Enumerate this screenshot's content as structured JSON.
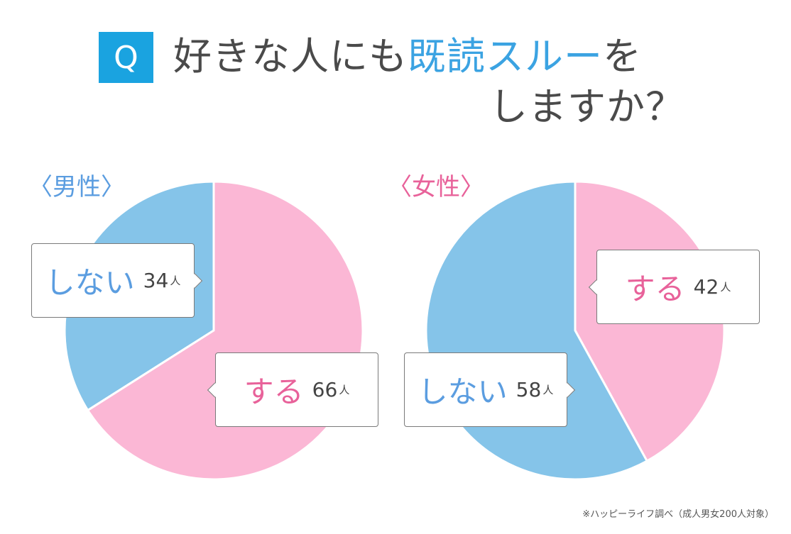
{
  "title": {
    "q_label": "Q",
    "line1_prefix": "好きな人にも",
    "line1_accent": "既読スルー",
    "line1_suffix": "を",
    "line2": "しますか？"
  },
  "colors": {
    "pink": "#fbb7d5",
    "blue": "#85c4e9",
    "accent_blue": "#3ba3e2",
    "pink_text": "#e8629a",
    "blue_text": "#5b9de0"
  },
  "chart_data": [
    {
      "type": "pie",
      "title": "〈男性〉",
      "categories": [
        "しない",
        "する"
      ],
      "values": [
        34,
        66
      ],
      "unit": "人",
      "colors": [
        "#85c4e9",
        "#fbb7d5"
      ]
    },
    {
      "type": "pie",
      "title": "〈女性〉",
      "categories": [
        "する",
        "しない"
      ],
      "values": [
        42,
        58
      ],
      "unit": "人",
      "colors": [
        "#fbb7d5",
        "#85c4e9"
      ]
    }
  ],
  "source": "※ハッピーライフ調べ（成人男女200人対象）"
}
